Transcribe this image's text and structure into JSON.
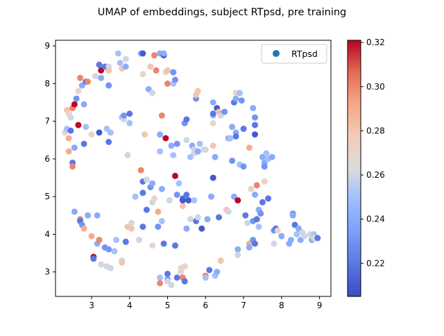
{
  "chart_data": {
    "type": "scatter",
    "title": "UMAP of embeddings, subject RTpsd, pre training",
    "xlabel": "",
    "ylabel": "",
    "xlim": [
      2.05,
      9.3
    ],
    "ylim": [
      2.35,
      9.15
    ],
    "xticks": [
      "3",
      "4",
      "5",
      "6",
      "7",
      "8",
      "9"
    ],
    "yticks": [
      "3",
      "4",
      "5",
      "6",
      "7",
      "8",
      "9"
    ],
    "grid": false,
    "legend": {
      "entries": [
        "RTpsd"
      ],
      "placement": "top-right"
    },
    "colorbar": {
      "colormap": "coolwarm",
      "range": [
        0.205,
        0.321
      ],
      "ticks": [
        "0.22",
        "0.24",
        "0.26",
        "0.28",
        "0.30",
        "0.32"
      ]
    },
    "colors": {
      "low": "#3b4cc0",
      "mid": "#dddddd",
      "high": "#b40426",
      "legend_marker": "#1f77b4"
    },
    "series": [
      {
        "name": "RTpsd",
        "points": [
          [
            2.3,
            6.7,
            0.27
          ],
          [
            2.35,
            6.8,
            0.25
          ],
          [
            2.35,
            7.3,
            0.28
          ],
          [
            2.4,
            7.2,
            0.27
          ],
          [
            2.4,
            6.55,
            0.29
          ],
          [
            2.4,
            6.2,
            0.29
          ],
          [
            2.45,
            6.75,
            0.22
          ],
          [
            2.45,
            7.1,
            0.26
          ],
          [
            2.5,
            5.9,
            0.22
          ],
          [
            2.5,
            5.8,
            0.3
          ],
          [
            2.5,
            7.35,
            0.3
          ],
          [
            2.55,
            7.45,
            0.32
          ],
          [
            2.55,
            6.3,
            0.24
          ],
          [
            2.55,
            4.6,
            0.24
          ],
          [
            2.6,
            7.6,
            0.23
          ],
          [
            2.65,
            6.9,
            0.32
          ],
          [
            2.65,
            7.8,
            0.27
          ],
          [
            2.7,
            8.15,
            0.3
          ],
          [
            2.75,
            7.95,
            0.24
          ],
          [
            2.7,
            4.4,
            0.3
          ],
          [
            2.7,
            4.35,
            0.22
          ],
          [
            2.75,
            4.25,
            0.23
          ],
          [
            2.8,
            6.4,
            0.22
          ],
          [
            2.8,
            4.15,
            0.29
          ],
          [
            2.85,
            6.85,
            0.25
          ],
          [
            2.85,
            8.05,
            0.22
          ],
          [
            2.8,
            7.45,
            0.24
          ],
          [
            2.9,
            8.05,
            0.3
          ],
          [
            2.9,
            4.5,
            0.24
          ],
          [
            3.0,
            3.95,
            0.29
          ],
          [
            3.0,
            6.65,
            0.27
          ],
          [
            3.05,
            3.4,
            0.32
          ],
          [
            3.05,
            3.35,
            0.22
          ],
          [
            3.1,
            8.2,
            0.26
          ],
          [
            3.15,
            3.75,
            0.24
          ],
          [
            3.15,
            4.5,
            0.24
          ],
          [
            3.2,
            6.7,
            0.21
          ],
          [
            3.2,
            3.85,
            0.3
          ],
          [
            3.2,
            8.5,
            0.22
          ],
          [
            3.25,
            8.35,
            0.32
          ],
          [
            3.25,
            8.15,
            0.24
          ],
          [
            3.25,
            3.2,
            0.26
          ],
          [
            3.35,
            8.45,
            0.22
          ],
          [
            3.35,
            3.65,
            0.23
          ],
          [
            3.4,
            6.8,
            0.25
          ],
          [
            3.4,
            3.15,
            0.26
          ],
          [
            3.45,
            6.45,
            0.22
          ],
          [
            3.45,
            8.45,
            0.26
          ],
          [
            3.45,
            8.35,
            0.28
          ],
          [
            3.45,
            7.95,
            0.23
          ],
          [
            3.45,
            3.6,
            0.23
          ],
          [
            3.5,
            3.1,
            0.26
          ],
          [
            3.5,
            6.7,
            0.25
          ],
          [
            3.6,
            3.55,
            0.25
          ],
          [
            3.65,
            3.85,
            0.25
          ],
          [
            3.7,
            8.8,
            0.25
          ],
          [
            3.75,
            8.55,
            0.25
          ],
          [
            3.8,
            7.1,
            0.25
          ],
          [
            3.8,
            3.3,
            0.26
          ],
          [
            3.8,
            8.4,
            0.28
          ],
          [
            3.8,
            3.25,
            0.28
          ],
          [
            3.85,
            7.05,
            0.26
          ],
          [
            3.85,
            7.15,
            0.23
          ],
          [
            3.9,
            8.65,
            0.26
          ],
          [
            3.9,
            8.45,
            0.24
          ],
          [
            3.9,
            3.8,
            0.22
          ],
          [
            3.95,
            6.1,
            0.26
          ],
          [
            3.95,
            4.2,
            0.28
          ],
          [
            4.0,
            7.2,
            0.22
          ],
          [
            4.0,
            6.95,
            0.25
          ],
          [
            4.05,
            4.15,
            0.28
          ],
          [
            4.05,
            4.3,
            0.26
          ],
          [
            4.15,
            5.0,
            0.25
          ],
          [
            4.25,
            3.85,
            0.26
          ],
          [
            4.3,
            8.8,
            0.24
          ],
          [
            4.3,
            5.7,
            0.3
          ],
          [
            4.35,
            8.8,
            0.21
          ],
          [
            4.35,
            8.25,
            0.27
          ],
          [
            4.35,
            5.4,
            0.22
          ],
          [
            4.35,
            5.1,
            0.22
          ],
          [
            4.35,
            4.2,
            0.22
          ],
          [
            4.4,
            6.65,
            0.28
          ],
          [
            4.45,
            5.45,
            0.26
          ],
          [
            4.45,
            4.65,
            0.22
          ],
          [
            4.5,
            7.85,
            0.24
          ],
          [
            4.55,
            8.45,
            0.28
          ],
          [
            4.55,
            5.25,
            0.23
          ],
          [
            4.6,
            7.75,
            0.26
          ],
          [
            4.6,
            5.35,
            0.24
          ],
          [
            4.6,
            4.85,
            0.26
          ],
          [
            4.65,
            4.95,
            0.27
          ],
          [
            4.6,
            3.7,
            0.27
          ],
          [
            4.65,
            8.75,
            0.3
          ],
          [
            4.7,
            8.35,
            0.3
          ],
          [
            4.75,
            4.2,
            0.23
          ],
          [
            4.75,
            4.6,
            0.29
          ],
          [
            4.8,
            8.8,
            0.24
          ],
          [
            4.8,
            6.65,
            0.24
          ],
          [
            4.8,
            6.2,
            0.25
          ],
          [
            4.8,
            2.85,
            0.25
          ],
          [
            4.8,
            2.7,
            0.3
          ],
          [
            4.85,
            7.15,
            0.3
          ],
          [
            4.85,
            5.2,
            0.24
          ],
          [
            4.85,
            4.35,
            0.25
          ],
          [
            4.9,
            8.75,
            0.21
          ],
          [
            4.9,
            3.75,
            0.22
          ],
          [
            4.9,
            8.8,
            0.24
          ],
          [
            4.95,
            6.55,
            0.32
          ],
          [
            4.95,
            8.3,
            0.27
          ],
          [
            5.0,
            8.35,
            0.28
          ],
          [
            5.0,
            8.0,
            0.3
          ],
          [
            5.0,
            2.95,
            0.22
          ],
          [
            5.0,
            2.8,
            0.23
          ],
          [
            5.0,
            2.75,
            0.26
          ],
          [
            5.05,
            4.9,
            0.26
          ],
          [
            5.1,
            6.35,
            0.24
          ],
          [
            5.1,
            2.65,
            0.26
          ],
          [
            5.15,
            8.3,
            0.23
          ],
          [
            5.15,
            8.0,
            0.25
          ],
          [
            5.15,
            6.1,
            0.25
          ],
          [
            5.2,
            8.1,
            0.23
          ],
          [
            5.2,
            5.55,
            0.32
          ],
          [
            5.2,
            3.7,
            0.22
          ],
          [
            5.25,
            5.05,
            0.23
          ],
          [
            5.25,
            6.4,
            0.23
          ],
          [
            5.25,
            2.85,
            0.22
          ],
          [
            5.3,
            5.35,
            0.25
          ],
          [
            5.35,
            3.1,
            0.27
          ],
          [
            5.35,
            3.0,
            0.27
          ],
          [
            5.4,
            4.75,
            0.28
          ],
          [
            5.4,
            4.95,
            0.22
          ],
          [
            5.4,
            4.9,
            0.21
          ],
          [
            5.4,
            2.85,
            0.3
          ],
          [
            5.45,
            2.75,
            0.22
          ],
          [
            5.45,
            3.15,
            0.27
          ],
          [
            5.45,
            6.95,
            0.23
          ],
          [
            5.5,
            7.05,
            0.22
          ],
          [
            5.5,
            5.05,
            0.22
          ],
          [
            5.5,
            4.15,
            0.24
          ],
          [
            5.5,
            6.5,
            0.26
          ],
          [
            5.55,
            4.9,
            0.21
          ],
          [
            5.6,
            6.05,
            0.25
          ],
          [
            5.6,
            4.4,
            0.26
          ],
          [
            5.65,
            6.35,
            0.24
          ],
          [
            5.7,
            6.25,
            0.26
          ],
          [
            5.7,
            6.15,
            0.26
          ],
          [
            5.7,
            4.9,
            0.25
          ],
          [
            5.75,
            7.6,
            0.23
          ],
          [
            5.75,
            7.7,
            0.28
          ],
          [
            5.8,
            7.8,
            0.28
          ],
          [
            5.75,
            4.35,
            0.22
          ],
          [
            5.8,
            4.45,
            0.26
          ],
          [
            5.8,
            6.2,
            0.24
          ],
          [
            5.85,
            6.4,
            0.25
          ],
          [
            5.9,
            4.15,
            0.21
          ],
          [
            5.95,
            6.25,
            0.26
          ],
          [
            6.0,
            6.25,
            0.26
          ],
          [
            6.0,
            2.9,
            0.3
          ],
          [
            6.0,
            2.85,
            0.25
          ],
          [
            6.05,
            4.4,
            0.24
          ],
          [
            6.1,
            3.05,
            0.22
          ],
          [
            6.15,
            5.0,
            0.24
          ],
          [
            6.2,
            7.15,
            0.25
          ],
          [
            6.2,
            7.5,
            0.24
          ],
          [
            6.2,
            7.2,
            0.22
          ],
          [
            6.2,
            6.95,
            0.27
          ],
          [
            6.2,
            5.5,
            0.21
          ],
          [
            6.2,
            6.35,
            0.28
          ],
          [
            6.25,
            6.05,
            0.24
          ],
          [
            6.25,
            2.9,
            0.25
          ],
          [
            6.3,
            3.0,
            0.24
          ],
          [
            6.3,
            7.35,
            0.21
          ],
          [
            6.35,
            7.25,
            0.28
          ],
          [
            6.4,
            7.2,
            0.29
          ],
          [
            6.4,
            7.15,
            0.26
          ],
          [
            6.35,
            4.45,
            0.22
          ],
          [
            6.4,
            3.3,
            0.28
          ],
          [
            6.5,
            7.25,
            0.23
          ],
          [
            6.55,
            4.65,
            0.28
          ],
          [
            6.6,
            4.6,
            0.26
          ],
          [
            6.6,
            6.55,
            0.24
          ],
          [
            6.65,
            6.55,
            0.25
          ],
          [
            6.7,
            6.85,
            0.24
          ],
          [
            6.7,
            5.95,
            0.23
          ],
          [
            6.75,
            7.5,
            0.22
          ],
          [
            6.75,
            5.0,
            0.24
          ],
          [
            6.8,
            7.75,
            0.27
          ],
          [
            6.8,
            7.6,
            0.24
          ],
          [
            6.8,
            6.7,
            0.24
          ],
          [
            6.8,
            6.6,
            0.22
          ],
          [
            6.85,
            4.9,
            0.32
          ],
          [
            6.85,
            3.6,
            0.24
          ],
          [
            6.85,
            3.45,
            0.26
          ],
          [
            6.9,
            5.85,
            0.25
          ],
          [
            6.9,
            7.75,
            0.25
          ],
          [
            6.95,
            7.55,
            0.23
          ],
          [
            7.0,
            6.8,
            0.22
          ],
          [
            7.0,
            5.8,
            0.23
          ],
          [
            7.05,
            4.5,
            0.22
          ],
          [
            7.1,
            4.3,
            0.26
          ],
          [
            7.15,
            6.3,
            0.29
          ],
          [
            7.15,
            3.75,
            0.29
          ],
          [
            7.15,
            3.65,
            0.24
          ],
          [
            7.2,
            5.2,
            0.27
          ],
          [
            7.25,
            4.35,
            0.23
          ],
          [
            7.25,
            3.85,
            0.23
          ],
          [
            7.25,
            7.35,
            0.24
          ],
          [
            7.3,
            7.1,
            0.23
          ],
          [
            7.3,
            6.65,
            0.21
          ],
          [
            7.3,
            6.9,
            0.22
          ],
          [
            7.3,
            5.05,
            0.24
          ],
          [
            7.3,
            3.75,
            0.22
          ],
          [
            7.35,
            5.3,
            0.3
          ],
          [
            7.35,
            4.4,
            0.22
          ],
          [
            7.4,
            4.65,
            0.24
          ],
          [
            7.4,
            4.2,
            0.25
          ],
          [
            7.45,
            4.55,
            0.23
          ],
          [
            7.5,
            4.85,
            0.22
          ],
          [
            7.5,
            6.05,
            0.24
          ],
          [
            7.55,
            5.9,
            0.24
          ],
          [
            7.55,
            5.8,
            0.23
          ],
          [
            7.55,
            5.4,
            0.27
          ],
          [
            7.6,
            6.15,
            0.25
          ],
          [
            7.65,
            4.95,
            0.22
          ],
          [
            7.65,
            6.0,
            0.25
          ],
          [
            7.75,
            6.05,
            0.24
          ],
          [
            7.8,
            4.1,
            0.23
          ],
          [
            7.8,
            3.75,
            0.26
          ],
          [
            7.85,
            4.15,
            0.22
          ],
          [
            7.9,
            4.1,
            0.27
          ],
          [
            8.0,
            3.95,
            0.24
          ],
          [
            8.2,
            3.75,
            0.24
          ],
          [
            8.25,
            3.85,
            0.24
          ],
          [
            8.3,
            4.55,
            0.23
          ],
          [
            8.3,
            4.5,
            0.24
          ],
          [
            8.35,
            4.25,
            0.22
          ],
          [
            8.4,
            4.0,
            0.25
          ],
          [
            8.45,
            4.15,
            0.24
          ],
          [
            8.5,
            3.85,
            0.24
          ],
          [
            8.55,
            4.05,
            0.26
          ],
          [
            8.6,
            3.95,
            0.26
          ],
          [
            8.75,
            4.0,
            0.26
          ],
          [
            8.8,
            3.85,
            0.24
          ],
          [
            8.85,
            4.0,
            0.25
          ],
          [
            8.85,
            3.9,
            0.27
          ],
          [
            8.95,
            3.9,
            0.22
          ]
        ]
      }
    ]
  }
}
